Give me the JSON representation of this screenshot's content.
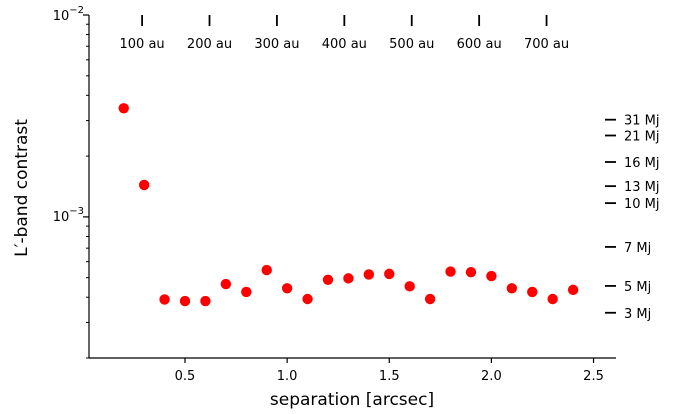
{
  "chart_data": {
    "type": "scatter",
    "xlabel": "separation [arcsec]",
    "ylabel": "L′-band contrast",
    "yscale": "log",
    "xlim": [
      0.03,
      2.61
    ],
    "ylim": [
      0.0002,
      0.01
    ],
    "grid": false,
    "color": "#ff0000",
    "x_ticks": [
      0.5,
      1.0,
      1.5,
      2.0,
      2.5
    ],
    "x_tick_labels": [
      "0.5",
      "1.0",
      "1.5",
      "2.0",
      "2.5"
    ],
    "y_ticks": [
      0.001,
      0.01
    ],
    "y_tick_labels": {
      "t1": {
        "base": "10",
        "exp": "−3"
      },
      "t2": {
        "base": "10",
        "exp": "−2"
      }
    },
    "top_axis": {
      "ticks": [
        0.29,
        0.62,
        0.95,
        1.28,
        1.61,
        1.94,
        2.27
      ],
      "labels": [
        "100 au",
        "200 au",
        "300 au",
        "400 au",
        "500 au",
        "600 au",
        "700 au"
      ]
    },
    "right_axis": {
      "ticks": [
        0.00303,
        0.00253,
        0.00187,
        0.00142,
        0.00117,
        0.00071,
        0.000455,
        0.000335
      ],
      "labels": [
        "31 Mj",
        "21 Mj",
        "16 Mj",
        "13 Mj",
        "10 Mj",
        "7 Mj",
        "5 Mj",
        "3 Mj"
      ]
    },
    "points": [
      {
        "x": 0.2,
        "y": 0.00345
      },
      {
        "x": 0.3,
        "y": 0.00144
      },
      {
        "x": 0.4,
        "y": 0.00039
      },
      {
        "x": 0.5,
        "y": 0.000383
      },
      {
        "x": 0.6,
        "y": 0.000383
      },
      {
        "x": 0.7,
        "y": 0.000465
      },
      {
        "x": 0.8,
        "y": 0.000425
      },
      {
        "x": 0.9,
        "y": 0.000545
      },
      {
        "x": 1.0,
        "y": 0.000443
      },
      {
        "x": 1.1,
        "y": 0.000392
      },
      {
        "x": 1.2,
        "y": 0.000488
      },
      {
        "x": 1.3,
        "y": 0.000496
      },
      {
        "x": 1.4,
        "y": 0.000519
      },
      {
        "x": 1.5,
        "y": 0.000522
      },
      {
        "x": 1.6,
        "y": 0.000453
      },
      {
        "x": 1.7,
        "y": 0.000392
      },
      {
        "x": 1.8,
        "y": 0.000536
      },
      {
        "x": 1.9,
        "y": 0.000532
      },
      {
        "x": 2.0,
        "y": 0.000509
      },
      {
        "x": 2.1,
        "y": 0.000443
      },
      {
        "x": 2.2,
        "y": 0.000425
      },
      {
        "x": 2.3,
        "y": 0.000392
      },
      {
        "x": 2.4,
        "y": 0.000435
      }
    ]
  }
}
